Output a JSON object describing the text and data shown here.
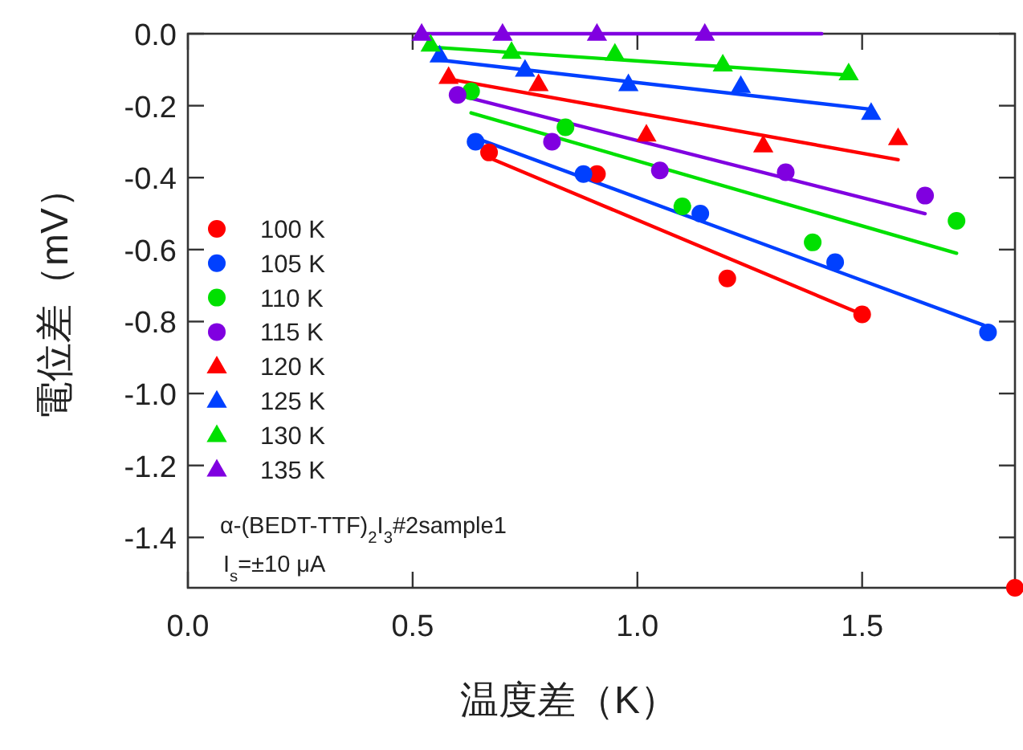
{
  "chart_data": {
    "type": "scatter",
    "xlabel": "温度差（K）",
    "ylabel": "電位差（mV）",
    "xlim": [
      0,
      1.84
    ],
    "ylim": [
      -1.54,
      0.0
    ],
    "xticks": [
      {
        "value": 0,
        "label": "0.0"
      },
      {
        "value": 0.5,
        "label": "0.5"
      },
      {
        "value": 1.0,
        "label": "1.0"
      },
      {
        "value": 1.5,
        "label": "1.5"
      }
    ],
    "yticks": [
      {
        "value": 0,
        "label": "0.0"
      },
      {
        "value": -0.2,
        "label": "-0.2"
      },
      {
        "value": -0.4,
        "label": "-0.4"
      },
      {
        "value": -0.6,
        "label": "-0.6"
      },
      {
        "value": -0.8,
        "label": "-0.8"
      },
      {
        "value": -1.0,
        "label": "-1.0"
      },
      {
        "value": -1.2,
        "label": "-1.2"
      },
      {
        "value": -1.4,
        "label": "-1.4"
      }
    ],
    "grid": false,
    "legend": "bottom left",
    "annotations": [
      "α-(BEDT-TTF)$_{2}$I$_{3}$#2sample1",
      "I$_{s}$=±10 μA"
    ],
    "series": [
      {
        "name": "100 K",
        "color": "#ff0000",
        "marker": "circle",
        "x": [
          0.67,
          0.91,
          1.2,
          1.5,
          1.84
        ],
        "values": [
          -0.33,
          -0.39,
          -0.68,
          -0.78,
          -1.54
        ]
      },
      {
        "name": "105 K",
        "color": "#0040ff",
        "marker": "circle",
        "x": [
          0.64,
          0.88,
          1.14,
          1.44,
          1.78
        ],
        "values": [
          -0.3,
          -0.39,
          -0.5,
          -0.635,
          -0.83
        ]
      },
      {
        "name": "110 K",
        "color": "#00e000",
        "marker": "circle",
        "x": [
          0.63,
          0.84,
          1.1,
          1.39,
          1.71
        ],
        "values": [
          -0.16,
          -0.26,
          -0.48,
          -0.58,
          -0.52
        ]
      },
      {
        "name": "115 K",
        "color": "#8000e0",
        "marker": "circle",
        "x": [
          0.6,
          0.81,
          1.05,
          1.33,
          1.64
        ],
        "values": [
          -0.17,
          -0.3,
          -0.38,
          -0.385,
          -0.45
        ]
      },
      {
        "name": "120 K",
        "color": "#ff0000",
        "marker": "triangle",
        "x": [
          0.58,
          0.78,
          1.02,
          1.28,
          1.58
        ],
        "values": [
          -0.12,
          -0.14,
          -0.28,
          -0.31,
          -0.29
        ]
      },
      {
        "name": "125 K",
        "color": "#0040ff",
        "marker": "triangle",
        "x": [
          0.56,
          0.75,
          0.98,
          1.23,
          1.52
        ],
        "values": [
          -0.06,
          -0.1,
          -0.14,
          -0.145,
          -0.22
        ]
      },
      {
        "name": "130 K",
        "color": "#00e000",
        "marker": "triangle",
        "x": [
          0.54,
          0.72,
          0.95,
          1.19,
          1.47
        ],
        "values": [
          -0.03,
          -0.05,
          -0.055,
          -0.085,
          -0.11
        ]
      },
      {
        "name": "135 K",
        "color": "#8000e0",
        "marker": "triangle",
        "x": [
          0.52,
          0.7,
          0.91,
          1.15
        ],
        "values": [
          0.0,
          0.0,
          0.0,
          0.0
        ]
      },
      {
        "type": "line",
        "color": "#ff0000",
        "marker": "none",
        "x": [
          0.68,
          1.5
        ],
        "values": [
          -0.35,
          -0.78
        ]
      },
      {
        "type": "line",
        "color": "#0040ff",
        "marker": "none",
        "x": [
          0.64,
          1.77
        ],
        "values": [
          -0.29,
          -0.81
        ]
      },
      {
        "type": "line",
        "color": "#00e000",
        "marker": "none",
        "x": [
          0.63,
          1.71
        ],
        "values": [
          -0.22,
          -0.61
        ]
      },
      {
        "type": "line",
        "color": "#8000e0",
        "marker": "none",
        "x": [
          0.6,
          1.64
        ],
        "values": [
          -0.17,
          -0.5
        ]
      },
      {
        "type": "line",
        "color": "#ff0000",
        "marker": "none",
        "x": [
          0.58,
          1.58
        ],
        "values": [
          -0.126,
          -0.35
        ]
      },
      {
        "type": "line",
        "color": "#0040ff",
        "marker": "none",
        "x": [
          0.56,
          1.52
        ],
        "values": [
          -0.073,
          -0.21
        ]
      },
      {
        "type": "line",
        "color": "#00e000",
        "marker": "none",
        "x": [
          0.54,
          1.47
        ],
        "values": [
          -0.037,
          -0.115
        ]
      },
      {
        "type": "line",
        "color": "#8000e0",
        "marker": "none",
        "x": [
          0.52,
          1.41
        ],
        "values": [
          0.0,
          0.0
        ]
      }
    ]
  }
}
